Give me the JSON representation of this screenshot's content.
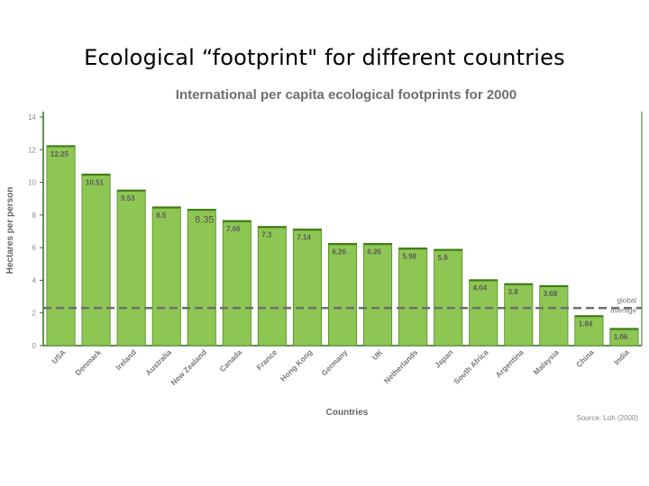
{
  "slide": {
    "title": "Ecological “footprint\" for different countries"
  },
  "chart_data": {
    "type": "bar",
    "title": "International per capita ecological footprints for 2000",
    "xlabel": "Countries",
    "ylabel": "Hectares per person",
    "ylim": [
      0,
      14
    ],
    "yticks": [
      0,
      2,
      4,
      6,
      8,
      10,
      12,
      14
    ],
    "categories": [
      "USA",
      "Denmark",
      "Ireland",
      "Australia",
      "New Zealand",
      "Canada",
      "France",
      "Hong Kong",
      "Germany",
      "UK",
      "Netherlands",
      "Japan",
      "South Africa",
      "Argentina",
      "Malaysia",
      "China",
      "India"
    ],
    "values": [
      12.25,
      10.51,
      9.53,
      8.5,
      8.35,
      7.66,
      7.3,
      7.14,
      6.26,
      6.26,
      5.98,
      5.9,
      4.04,
      3.8,
      3.68,
      1.84,
      1.06
    ],
    "value_labels": [
      "12.25",
      "10.51",
      "9.53",
      "8.5",
      "8.35",
      "7.66",
      "7.3",
      "7.14",
      "6.26",
      "6.26",
      "5.98",
      "5.9",
      "4.04",
      "3.8",
      "3.68",
      "1.84",
      "1.06"
    ],
    "reference_line": {
      "value": 2.3,
      "label_lines": [
        "global",
        "average"
      ]
    },
    "source": "Source: Loh (2000)",
    "grid": false,
    "colors": {
      "bar_fill": "#8dc653",
      "bar_stroke": "#4e8a22",
      "axis": "#2f6f1e",
      "average_line": "#6e6e6e"
    }
  }
}
